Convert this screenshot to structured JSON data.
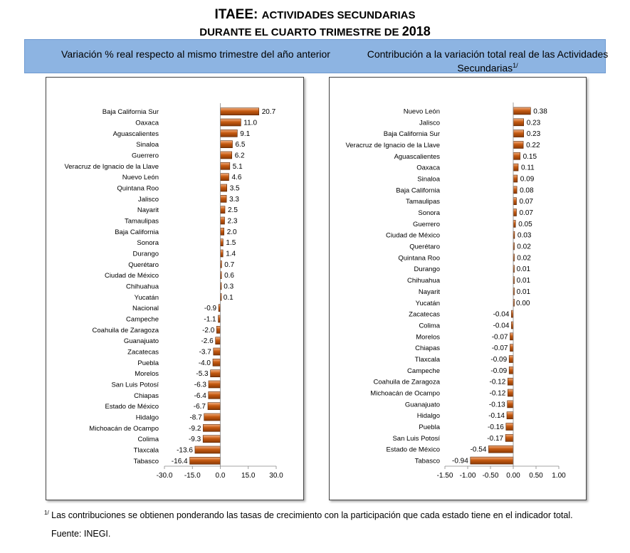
{
  "header": {
    "title_main": "ITAEE: ",
    "title_main_sc": "Actividades Secundarias",
    "title_sub": "DURANTE EL CUARTO TRIMESTRE DE ",
    "title_year": "2018"
  },
  "panel_titles": {
    "left": "Variación % real respecto al mismo trimestre del año anterior",
    "right": "Contribución a la variación total real de las Actividades Secundarias",
    "right_note": "1/"
  },
  "colors": {
    "bar": "#C55A11",
    "bar_light": "#F4B183",
    "banner": "#8DB4E2"
  },
  "chart_data": [
    {
      "type": "bar",
      "orientation": "horizontal",
      "categories": [
        "Baja California Sur",
        "Oaxaca",
        "Aguascalientes",
        "Sinaloa",
        "Guerrero",
        "Veracruz de Ignacio de la Llave",
        "Nuevo León",
        "Quintana Roo",
        "Jalisco",
        "Nayarit",
        "Tamaulipas",
        "Baja California",
        "Sonora",
        "Durango",
        "Querétaro",
        "Ciudad de México",
        "Chihuahua",
        "Yucatán",
        "Nacional",
        "Campeche",
        "Coahuila de Zaragoza",
        "Guanajuato",
        "Zacatecas",
        "Puebla",
        "Morelos",
        "San Luis Potosí",
        "Chiapas",
        "Estado de México",
        "Hidalgo",
        "Michoacán de Ocampo",
        "Colima",
        "Tlaxcala",
        "Tabasco"
      ],
      "values": [
        20.7,
        11.0,
        9.1,
        6.5,
        6.2,
        5.1,
        4.6,
        3.5,
        3.3,
        2.5,
        2.3,
        2.0,
        1.5,
        1.4,
        0.7,
        0.6,
        0.3,
        0.1,
        -0.9,
        -1.1,
        -2.0,
        -2.6,
        -3.7,
        -4.0,
        -5.3,
        -6.3,
        -6.4,
        -6.7,
        -8.7,
        -9.2,
        -9.3,
        -13.6,
        -16.4
      ],
      "labels": [
        "20.7",
        "11.0",
        "9.1",
        "6.5",
        "6.2",
        "5.1",
        "4.6",
        "3.5",
        "3.3",
        "2.5",
        "2.3",
        "2.0",
        "1.5",
        "1.4",
        "0.7",
        "0.6",
        "0.3",
        "0.1",
        "-0.9",
        "-1.1",
        "-2.0",
        "-2.6",
        "-3.7",
        "-4.0",
        "-5.3",
        "-6.3",
        "-6.4",
        "-6.7",
        "-8.7",
        "-9.2",
        "-9.3",
        "-13.6",
        "-16.4"
      ],
      "xlim": [
        -30,
        30
      ],
      "xticks": [
        "-30.0",
        "-15.0",
        "0.0",
        "15.0",
        "30.0"
      ],
      "xtick_values": [
        -30,
        -15,
        0,
        15,
        30
      ],
      "grid": false
    },
    {
      "type": "bar",
      "orientation": "horizontal",
      "categories": [
        "Nuevo León",
        "Jalisco",
        "Baja California Sur",
        "Veracruz de Ignacio de la Llave",
        "Aguascalientes",
        "Oaxaca",
        "Sinaloa",
        "Baja California",
        "Tamaulipas",
        "Sonora",
        "Guerrero",
        "Ciudad de México",
        "Querétaro",
        "Quintana Roo",
        "Durango",
        "Chihuahua",
        "Nayarit",
        "Yucatán",
        "Zacatecas",
        "Colima",
        "Morelos",
        "Chiapas",
        "Tlaxcala",
        "Campeche",
        "Coahuila de Zaragoza",
        "Michoacán de Ocampo",
        "Guanajuato",
        "Hidalgo",
        "Puebla",
        "San Luis Potosí",
        "Estado de México",
        "Tabasco"
      ],
      "values": [
        0.38,
        0.23,
        0.23,
        0.22,
        0.15,
        0.11,
        0.09,
        0.08,
        0.07,
        0.07,
        0.05,
        0.03,
        0.02,
        0.02,
        0.01,
        0.01,
        0.01,
        0.0,
        -0.04,
        -0.04,
        -0.07,
        -0.07,
        -0.09,
        -0.09,
        -0.12,
        -0.12,
        -0.13,
        -0.14,
        -0.16,
        -0.17,
        -0.54,
        -0.94
      ],
      "labels": [
        "0.38",
        "0.23",
        "0.23",
        "0.22",
        "0.15",
        "0.11",
        "0.09",
        "0.08",
        "0.07",
        "0.07",
        "0.05",
        "0.03",
        "0.02",
        "0.02",
        "0.01",
        "0.01",
        "0.01",
        "0.00",
        "-0.04",
        "-0.04",
        "-0.07",
        "-0.07",
        "-0.09",
        "-0.09",
        "-0.12",
        "-0.12",
        "-0.13",
        "-0.14",
        "-0.16",
        "-0.17",
        "-0.54",
        "-0.94"
      ],
      "xlim": [
        -1.5,
        1.0
      ],
      "xticks": [
        "-1.50",
        "-1.00",
        "-0.50",
        "0.00",
        "0.50",
        "1.00"
      ],
      "xtick_values": [
        -1.5,
        -1.0,
        -0.5,
        0.0,
        0.5,
        1.0
      ],
      "grid": false
    }
  ],
  "footnote": {
    "mark": "1/",
    "text": " Las contribuciones se obtienen ponderando las tasas de crecimiento con la participación que cada estado tiene en el indicador total.",
    "source": "Fuente: INEGI."
  }
}
